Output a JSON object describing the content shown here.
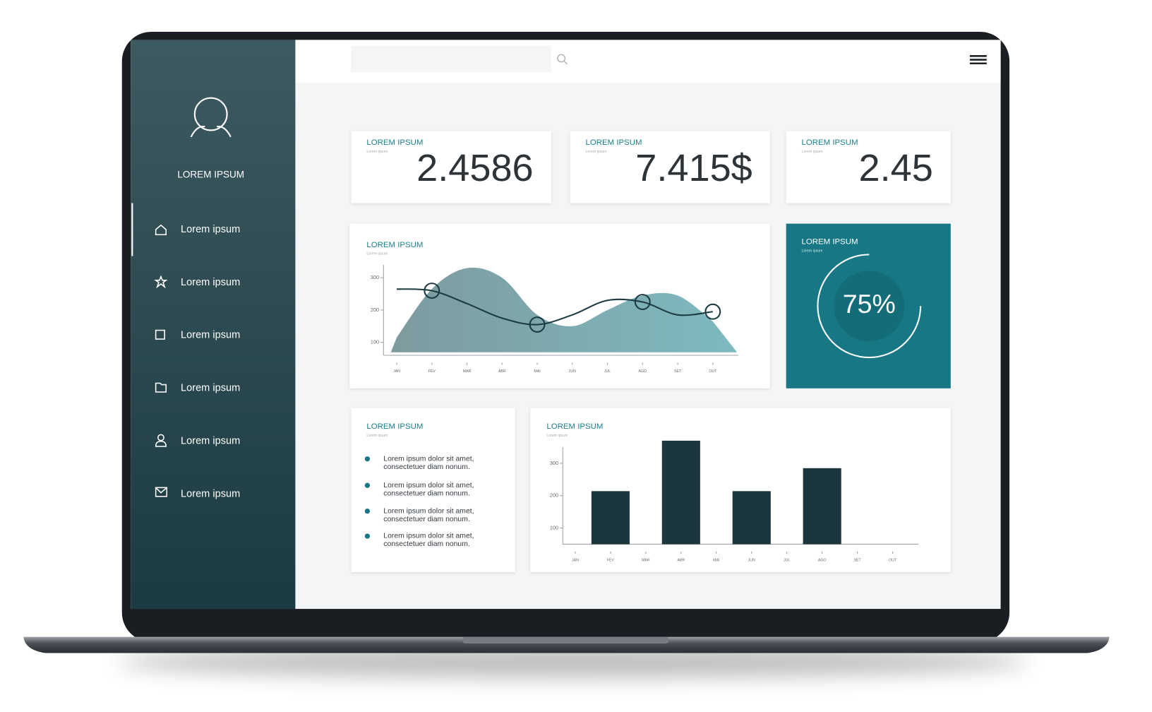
{
  "sidebar": {
    "user_name": "LOREM IPSUM",
    "nav": [
      "Lorem ipsum",
      "Lorem ipsum",
      "Lorem ipsum",
      "Lorem ipsum",
      "Lorem ipsum",
      "Lorem ipsum"
    ]
  },
  "stat_cards": [
    {
      "title": "LOREM IPSUM",
      "subtitle": "Lorem ipsum",
      "value": "2.4586"
    },
    {
      "title": "LOREM IPSUM",
      "subtitle": "Lorem ipsum",
      "value": "7.415$"
    },
    {
      "title": "LOREM IPSUM",
      "subtitle": "Lorem ipsum",
      "value": "2.45"
    }
  ],
  "list_card": {
    "title": "LOREM IPSUM",
    "subtitle": "Lorem ipsum",
    "items": [
      [
        "Lorem ipsum dolor sit amet,",
        "consectetuer diam nonum."
      ],
      [
        "Lorem ipsum dolor sit amet,",
        "consectetuer diam nonum."
      ],
      [
        "Lorem ipsum dolor sit amet,",
        "consectetuer diam nonum."
      ],
      [
        "Lorem ipsum dolor sit amet,",
        "consectetuer diam nonum."
      ]
    ]
  },
  "chart_data": [
    {
      "type": "line",
      "title": "LOREM IPSUM",
      "subtitle": "Lorem ipsum",
      "categories": [
        "JAN",
        "FEV",
        "MAR",
        "ABR",
        "MAI",
        "JUN",
        "JUL",
        "AGO",
        "SET",
        "OUT"
      ],
      "series": [
        {
          "color": "#5f9aa0",
          "area": true,
          "values": [
            115,
            265,
            330,
            300,
            185,
            150,
            200,
            245,
            245,
            165
          ]
        },
        {
          "color": "#1d3b42",
          "markers": [
            1,
            4,
            7,
            9
          ],
          "values": [
            265,
            260,
            220,
            175,
            155,
            185,
            230,
            225,
            185,
            195
          ]
        }
      ],
      "ylim": [
        60,
        340
      ],
      "yticks": [
        100,
        200,
        300
      ]
    },
    {
      "type": "donut",
      "title": "LOREM IPSUM",
      "subtitle": "Lorem ipsum",
      "values": [
        75
      ],
      "value_labels": [
        "75%"
      ],
      "color": "#ffffff"
    },
    {
      "type": "bar",
      "title": "LOREM IPSUM",
      "subtitle": "Lorem ipsum",
      "categories": [
        "JAN",
        "FEV",
        "MAR",
        "ABR",
        "MAI",
        "JUN",
        "JUL",
        "AGO",
        "SET",
        "OUT"
      ],
      "values": [
        null,
        214,
        null,
        370,
        null,
        214,
        null,
        285,
        null,
        null
      ],
      "color": "#1c363d",
      "ylim": [
        50,
        350
      ],
      "yticks": [
        100,
        200,
        300
      ]
    }
  ]
}
